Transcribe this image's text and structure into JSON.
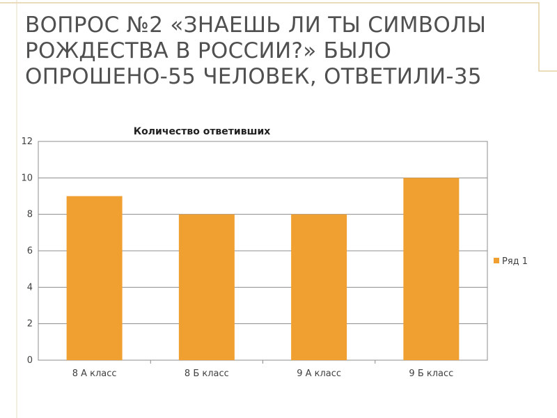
{
  "slide": {
    "title": "ВОПРОС №2 «ЗНАЕШЬ ЛИ ТЫ СИМВОЛЫ РОЖДЕСТВА В РОССИИ?» БЫЛО ОПРОШЕНО-55 ЧЕЛОВЕК, ОТВЕТИЛИ-35",
    "accent_color": "#f0a030"
  },
  "chart_data": {
    "type": "bar",
    "title": "Количество ответивших",
    "categories": [
      "8 А класс",
      "8 Б класс",
      "9 А класс",
      "9 Б класс"
    ],
    "series": [
      {
        "name": "Ряд 1",
        "values": [
          9,
          8,
          8,
          10
        ],
        "color": "#f0a030"
      }
    ],
    "yticks": [
      "0",
      "2",
      "4",
      "6",
      "8",
      "10",
      "12"
    ],
    "ylim": [
      0,
      12
    ],
    "grid": true,
    "legend": "right"
  }
}
